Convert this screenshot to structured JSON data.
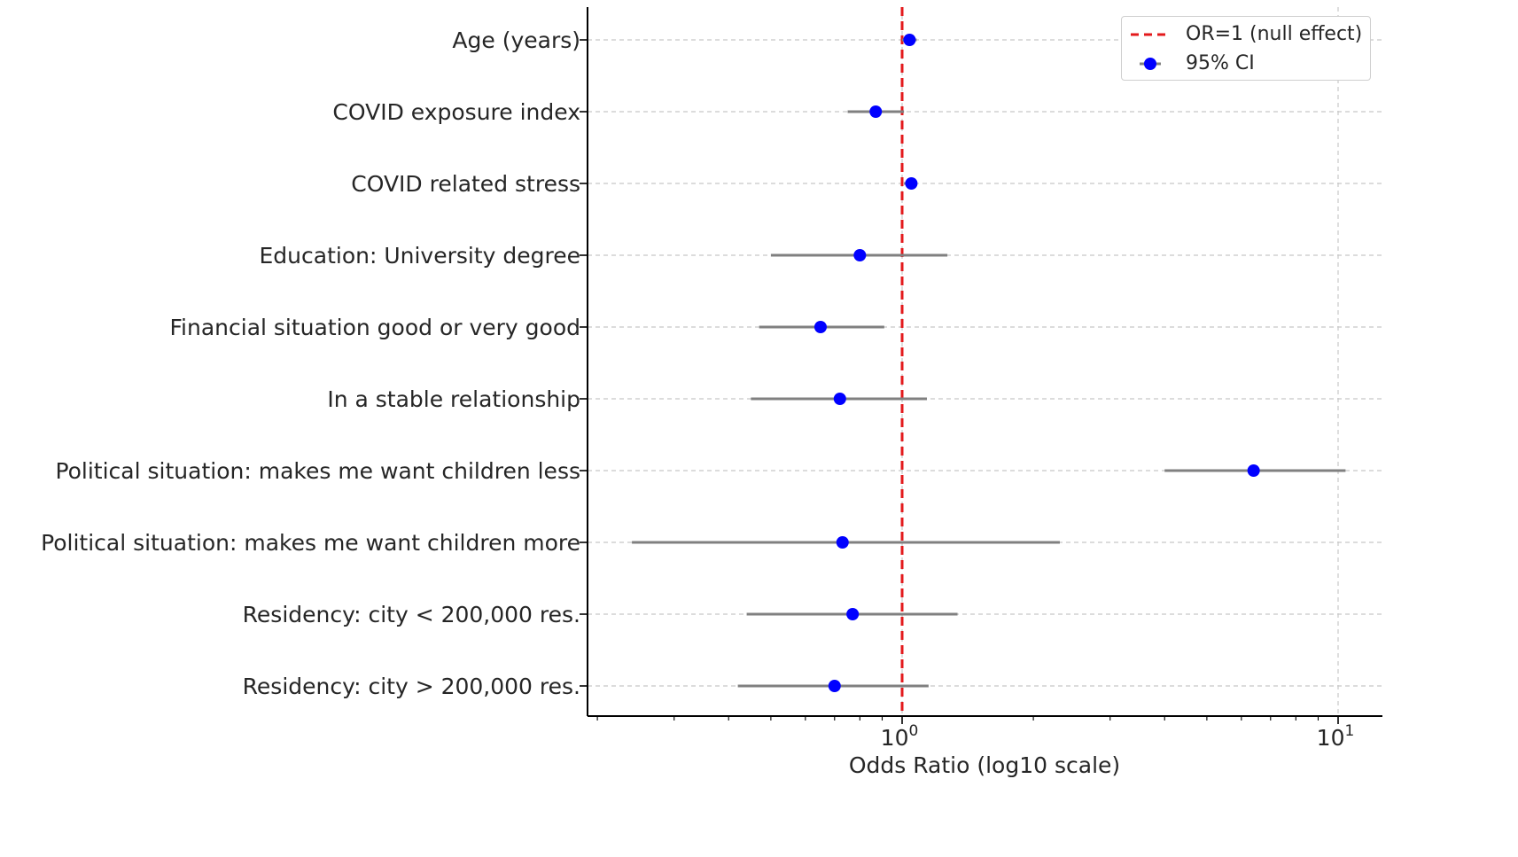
{
  "chart_data": {
    "type": "forest",
    "title": "",
    "xlabel": "Odds Ratio (log10 scale)",
    "ylabel": "",
    "xscale": "log10",
    "xlim": [
      0.2,
      11.2
    ],
    "x_ticks": [
      {
        "value": 1,
        "base": "10",
        "exp": "0"
      },
      {
        "value": 10,
        "base": "10",
        "exp": "1"
      }
    ],
    "grid": true,
    "reference_line": {
      "value": 1,
      "label": "OR=1 (null effect)",
      "color": "#e31a1c"
    },
    "ci_label": "95% CI",
    "point_color": "#0000ff",
    "ci_color": "#808080",
    "legend_position": "top-right",
    "categories": [
      "Age (years)",
      "COVID exposure index",
      "COVID related stress",
      "Education: University degree",
      "Financial situation good or very good",
      "In a stable relationship",
      "Political situation: makes me want children less",
      "Political situation: makes me want children more",
      "Residency: city < 200,000 res.",
      "Residency: city > 200,000 res."
    ],
    "odds_ratio": [
      1.04,
      0.87,
      1.05,
      0.8,
      0.65,
      0.72,
      6.4,
      0.73,
      0.77,
      0.7
    ],
    "ci_lower": [
      1.0,
      0.75,
      1.01,
      0.5,
      0.47,
      0.45,
      4.0,
      0.24,
      0.44,
      0.42
    ],
    "ci_upper": [
      1.08,
      1.01,
      1.08,
      1.27,
      0.91,
      1.14,
      10.4,
      2.3,
      1.34,
      1.15
    ]
  }
}
